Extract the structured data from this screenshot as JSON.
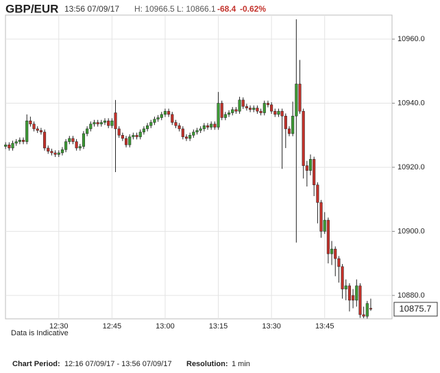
{
  "header": {
    "pair": "GBP/EUR",
    "time": "13:56 07/09/17",
    "high": "H: 10966.5",
    "low": "L: 10866.1",
    "change": "-68.4",
    "change_pct": "-0.62%"
  },
  "footer": {
    "period_label": "Chart Period:",
    "period": "12:16 07/09/17 - 13:56 07/09/17",
    "resolution_label": "Resolution:",
    "resolution": "1 min"
  },
  "chart_data": {
    "type": "candlestick",
    "annotation": "Data is Indicative",
    "last_price": 10875.7,
    "up_color": "#3d9b35",
    "down_color": "#c3322b",
    "grid": true,
    "ylim": [
      10872.7,
      10967.5
    ],
    "yticks": [
      {
        "value": 10880,
        "label": "10880.0"
      },
      {
        "value": 10900,
        "label": "10900.0"
      },
      {
        "value": 10920,
        "label": "10920.0"
      },
      {
        "value": 10940,
        "label": "10940.0"
      },
      {
        "value": 10960,
        "label": "10960.0"
      }
    ],
    "xlim": [
      "12:14",
      "14:04"
    ],
    "xticks": [
      "12:30",
      "12:45",
      "13:00",
      "13:15",
      "13:30",
      "13:45"
    ],
    "x": [
      "12:15",
      "12:16",
      "12:17",
      "12:18",
      "12:19",
      "12:20",
      "12:21",
      "12:22",
      "12:23",
      "12:24",
      "12:25",
      "12:26",
      "12:27",
      "12:28",
      "12:29",
      "12:30",
      "12:31",
      "12:32",
      "12:33",
      "12:34",
      "12:35",
      "12:36",
      "12:37",
      "12:38",
      "12:39",
      "12:40",
      "12:41",
      "12:42",
      "12:43",
      "12:44",
      "12:45",
      "12:46",
      "12:47",
      "12:48",
      "12:49",
      "12:50",
      "12:51",
      "12:52",
      "12:53",
      "12:54",
      "12:55",
      "12:56",
      "12:57",
      "12:58",
      "12:59",
      "13:00",
      "13:01",
      "13:02",
      "13:03",
      "13:04",
      "13:05",
      "13:06",
      "13:07",
      "13:08",
      "13:09",
      "13:10",
      "13:11",
      "13:12",
      "13:13",
      "13:14",
      "13:15",
      "13:16",
      "13:17",
      "13:18",
      "13:19",
      "13:20",
      "13:21",
      "13:22",
      "13:23",
      "13:24",
      "13:25",
      "13:26",
      "13:27",
      "13:28",
      "13:29",
      "13:30",
      "13:31",
      "13:32",
      "13:33",
      "13:34",
      "13:35",
      "13:36",
      "13:37",
      "13:38",
      "13:39",
      "13:40",
      "13:41",
      "13:42",
      "13:43",
      "13:44",
      "13:45",
      "13:46",
      "13:47",
      "13:48",
      "13:49",
      "13:50",
      "13:51",
      "13:52",
      "13:53",
      "13:54",
      "13:55",
      "13:56",
      "13:57",
      "13:58"
    ],
    "open": [
      10926.5,
      10927,
      10926,
      10927.5,
      10928,
      10928.5,
      10928,
      10934.5,
      10933.5,
      10932,
      10931.5,
      10931,
      10926,
      10925,
      10924.5,
      10924,
      10924.5,
      10925.5,
      10928,
      10929,
      10928,
      10926,
      10926.5,
      10930.5,
      10932,
      10933.5,
      10934,
      10933.5,
      10934,
      10934.5,
      10933,
      10937,
      10932,
      10930,
      10929,
      10927,
      10929.5,
      10930,
      10929.5,
      10931,
      10932,
      10933,
      10934,
      10935,
      10935.5,
      10936.5,
      10937.5,
      10936.5,
      10934,
      10933,
      10932,
      10929.5,
      10929,
      10930,
      10931,
      10931.5,
      10932,
      10933,
      10932.5,
      10933.5,
      10932.5,
      10940,
      10935.5,
      10936.5,
      10937,
      10938,
      10937.5,
      10941,
      10939,
      10938.5,
      10938,
      10938.5,
      10937.5,
      10937,
      10940,
      10939.5,
      10937.5,
      10936.5,
      10937.5,
      10936,
      10932,
      10930.5,
      10936,
      10946,
      10937.5,
      10920.5,
      10919,
      10922.5,
      10914.5,
      10909,
      10900,
      10903.5,
      10893,
      10894.5,
      10891.5,
      10889,
      10882,
      10883,
      10880,
      10878.5,
      10883,
      10874,
      10873.5,
      10876
    ],
    "high": [
      10927.8,
      10927.8,
      10928.3,
      10928.8,
      10929.3,
      10929.3,
      10936.5,
      10935.8,
      10934.3,
      10932.8,
      10932.3,
      10931.8,
      10926.8,
      10925.8,
      10925.3,
      10925.3,
      10926.3,
      10928.8,
      10929.8,
      10929.8,
      10928.8,
      10927.3,
      10931.3,
      10932.8,
      10934.3,
      10934.8,
      10934.8,
      10934.8,
      10935.3,
      10935.3,
      10935.3,
      10941,
      10932.8,
      10930.8,
      10929.8,
      10930.3,
      10930.8,
      10930.8,
      10931.8,
      10932.8,
      10933.8,
      10934.8,
      10935.8,
      10936.3,
      10937.3,
      10938.3,
      10938.3,
      10937.3,
      10934.8,
      10933.8,
      10932.8,
      10930.3,
      10930.8,
      10931.8,
      10932.3,
      10932.8,
      10933.8,
      10933.8,
      10934.3,
      10934.3,
      10943.5,
      10940.8,
      10937.3,
      10937.8,
      10938.8,
      10938.8,
      10942,
      10941.8,
      10939.8,
      10939.3,
      10939.3,
      10939.3,
      10938.3,
      10940.8,
      10940.8,
      10940.3,
      10938.3,
      10938.3,
      10938.3,
      10936.8,
      10932.8,
      10940.5,
      10966.2,
      10953.5,
      10938.3,
      10922,
      10924,
      10923.3,
      10915.3,
      10909.8,
      10906,
      10904.3,
      10897,
      10895.3,
      10892.3,
      10889.8,
      10885,
      10883.8,
      10882,
      10885,
      10883.8,
      10876.5,
      10878.3,
      10879
    ],
    "low": [
      10925.7,
      10925.2,
      10925.2,
      10926.7,
      10927.2,
      10927.2,
      10927.2,
      10932.7,
      10931.2,
      10930.7,
      10930.2,
      10925.2,
      10924.2,
      10923.7,
      10923.2,
      10923.2,
      10923.7,
      10924.7,
      10927.2,
      10927.2,
      10925.2,
      10925.2,
      10925.7,
      10929.7,
      10931.2,
      10932.7,
      10932.7,
      10932.7,
      10933.2,
      10932.2,
      10932.2,
      10918.5,
      10929.2,
      10928.2,
      10926.2,
      10926.2,
      10928.7,
      10928.7,
      10928.7,
      10930.2,
      10931.2,
      10932.2,
      10933.2,
      10934.2,
      10934.7,
      10935.7,
      10935.7,
      10933.2,
      10932.2,
      10931.2,
      10928.7,
      10928.2,
      10928.2,
      10929.2,
      10930.2,
      10930.7,
      10931.2,
      10931.7,
      10931.7,
      10931.7,
      10931.7,
      10934.7,
      10934.7,
      10935.7,
      10936.2,
      10936.7,
      10936.7,
      10938.2,
      10937.7,
      10937.2,
      10937.2,
      10936.7,
      10936.2,
      10936.2,
      10938.7,
      10936.7,
      10935.7,
      10935.7,
      10919.5,
      10926,
      10929.7,
      10929.7,
      10896.5,
      10936.7,
      10916.5,
      10914,
      10917.5,
      10911,
      10902.5,
      10898,
      10899.2,
      10890,
      10889.5,
      10886,
      10884,
      10879,
      10878.5,
      10875,
      10876,
      10876.5,
      10873,
      10872.9,
      10872.8,
      10875.2
    ],
    "close": [
      10927,
      10926,
      10927.5,
      10928,
      10928.5,
      10928,
      10934.5,
      10933.5,
      10932,
      10931.5,
      10931,
      10926,
      10925,
      10924.5,
      10924,
      10924.5,
      10925.5,
      10928,
      10929,
      10928,
      10926,
      10926.5,
      10930.5,
      10932,
      10933.5,
      10934,
      10933.5,
      10934,
      10934.5,
      10933,
      10934.5,
      10932,
      10930,
      10929,
      10927,
      10929.5,
      10930,
      10929.5,
      10931,
      10932,
      10933,
      10934,
      10935,
      10935.5,
      10936.5,
      10937.5,
      10936.5,
      10934,
      10933,
      10932,
      10929.5,
      10929,
      10930,
      10931,
      10931.5,
      10932,
      10933,
      10932.5,
      10933.5,
      10932.5,
      10940,
      10935.5,
      10936.5,
      10937,
      10938,
      10937.5,
      10941,
      10939,
      10938.5,
      10938,
      10938.5,
      10937.5,
      10937,
      10940,
      10939.5,
      10937.5,
      10936.5,
      10937.5,
      10936,
      10932,
      10930.5,
      10936,
      10946,
      10937.5,
      10920.5,
      10919,
      10922.5,
      10914.5,
      10909,
      10900,
      10903.5,
      10893,
      10894.5,
      10891.5,
      10889,
      10882,
      10883,
      10878.5,
      10878.5,
      10883,
      10874,
      10873.5,
      10877.5,
      10875.7
    ]
  }
}
